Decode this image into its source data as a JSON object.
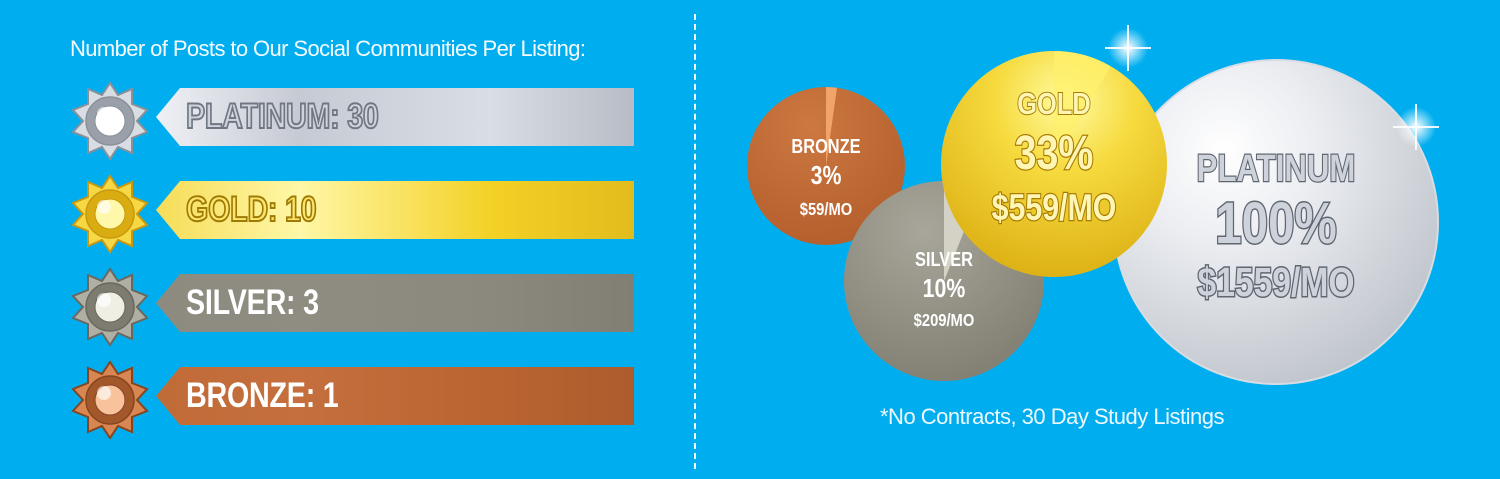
{
  "heading": "Number of Posts to Our Social Communities Per Listing:",
  "tiers": [
    {
      "label": "PLATINUM: 30",
      "posts": 30,
      "ribbon_colors": [
        "#eef0f5",
        "#c6cad3",
        "#d9dde4",
        "#b8bcc5"
      ],
      "medal_colors": [
        "#d8dce3",
        "#9aa0aa",
        "#ffffff",
        "#8b9098"
      ],
      "text_fill": "#cfd4dc",
      "text_stroke": "#707782"
    },
    {
      "label": "GOLD: 10",
      "posts": 10,
      "ribbon_colors": [
        "#f6dc57",
        "#fff7a7",
        "#f3d126",
        "#e1bc1d"
      ],
      "medal_colors": [
        "#f6d744",
        "#d9ac11",
        "#fff7aa",
        "#c9980f"
      ],
      "text_fill": "#ffe66b",
      "text_stroke": "#9e7a06"
    },
    {
      "label": "SILVER: 3",
      "posts": 3,
      "ribbon_colors": [
        "#8d8b7f",
        "#8f8d81",
        "#8b897e",
        "#817f74"
      ],
      "medal_colors": [
        "#b0afa5",
        "#7e7c70",
        "#f0efe6",
        "#6a685d"
      ],
      "text_fill": "#ffffff",
      "text_stroke": "none"
    },
    {
      "label": "BRONZE: 1",
      "posts": 1,
      "ribbon_colors": [
        "#c06b38",
        "#c46f3d",
        "#ba6431",
        "#ad5c2d"
      ],
      "medal_colors": [
        "#d88752",
        "#a3582c",
        "#f7c29c",
        "#874420"
      ],
      "text_fill": "#ffffff",
      "text_stroke": "none"
    }
  ],
  "chart_data": {
    "type": "pie",
    "series": [
      {
        "name": "BRONZE",
        "percent": 3,
        "price": "$59/MO",
        "value": 3,
        "colors": [
          "#c06b38",
          "#f3a66c",
          "#ffffff"
        ]
      },
      {
        "name": "SILVER",
        "percent": 10,
        "price": "$209/MO",
        "value": 10,
        "colors": [
          "#908f84",
          "#d7d5c8",
          "#ffffff"
        ]
      },
      {
        "name": "GOLD",
        "percent": 33,
        "price": "$559/MO",
        "value": 33,
        "colors": [
          "#ecc52b",
          "#fff06b",
          "#b88a00"
        ]
      },
      {
        "name": "PLATINUM",
        "percent": 100,
        "price": "$1559/MO",
        "value": 100,
        "colors": [
          "#c9cdd3",
          "#f3f4f7",
          "#7d838c"
        ]
      }
    ]
  },
  "footer_note": "*No Contracts, 30 Day Study Listings"
}
